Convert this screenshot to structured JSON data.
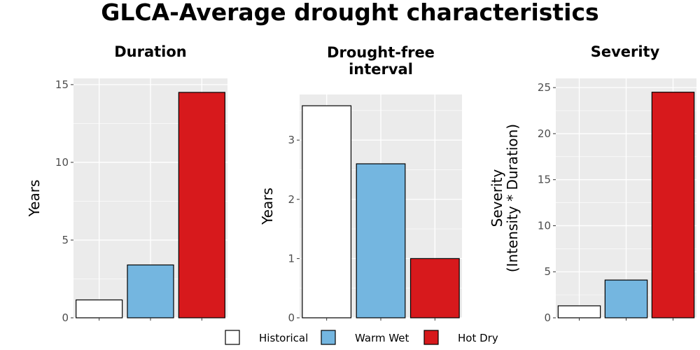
{
  "title": "GLCA-Average drought characteristics",
  "colors": {
    "panel_bg": "#ebebeb",
    "grid": "#ffffff",
    "bar_outline": "#000000",
    "tick": "#333333",
    "tick_label": "#4d4d4d"
  },
  "legend": {
    "position": "bottom",
    "items": [
      {
        "label": "Historical",
        "color": "#ffffff"
      },
      {
        "label": "Warm Wet",
        "color": "#74b6e0"
      },
      {
        "label": "Hot Dry",
        "color": "#d7191c"
      }
    ]
  },
  "chart_data": [
    {
      "type": "bar",
      "title": [
        "Duration"
      ],
      "ylabel": [
        "Years"
      ],
      "categories": [
        "Historical",
        "Warm Wet",
        "Hot Dry"
      ],
      "values": [
        1.15,
        3.4,
        14.5
      ],
      "ylim": [
        0,
        15.4
      ],
      "yticks": [
        0,
        5,
        10,
        15
      ],
      "ytick_labels": [
        "0",
        "5",
        "10",
        "15"
      ],
      "grid": true
    },
    {
      "type": "bar",
      "title": [
        "Drought-free",
        "interval"
      ],
      "ylabel": [
        "Years"
      ],
      "categories": [
        "Historical",
        "Warm Wet",
        "Hot Dry"
      ],
      "values": [
        3.58,
        2.6,
        1.0
      ],
      "ylim": [
        0,
        3.77
      ],
      "yticks": [
        0,
        1,
        2,
        3
      ],
      "ytick_labels": [
        "0",
        "1",
        "2",
        "3"
      ],
      "grid": true
    },
    {
      "type": "bar",
      "title": [
        "Severity"
      ],
      "ylabel": [
        "Severity",
        "(Intensity * Duration)"
      ],
      "categories": [
        "Historical",
        "Warm Wet",
        "Hot Dry"
      ],
      "values": [
        1.3,
        4.1,
        24.5
      ],
      "ylim": [
        0,
        26.0
      ],
      "yticks": [
        0,
        5,
        10,
        15,
        20,
        25
      ],
      "ytick_labels": [
        "0",
        "5",
        "10",
        "15",
        "20",
        "25"
      ],
      "grid": true
    }
  ]
}
